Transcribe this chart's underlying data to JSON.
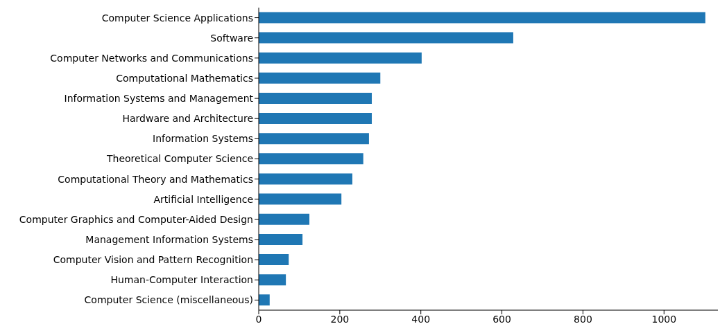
{
  "chart_data": {
    "type": "bar",
    "orientation": "horizontal",
    "categories": [
      "Computer Science Applications",
      "Software",
      "Computer Networks and Communications",
      "Computational Mathematics",
      "Information Systems and Management",
      "Hardware and Architecture",
      "Information Systems",
      "Theoretical Computer Science",
      "Computational Theory and Mathematics",
      "Artificial Intelligence",
      "Computer Graphics and Computer-Aided Design",
      "Management Information Systems",
      "Computer Vision and Pattern Recognition",
      "Human-Computer Interaction",
      "Computer Science (miscellaneous)"
    ],
    "values": [
      1102,
      628,
      402,
      300,
      279,
      279,
      272,
      258,
      231,
      204,
      125,
      108,
      74,
      67,
      27
    ],
    "color": "#1f77b4",
    "xlim": [
      0,
      1133
    ],
    "xticks": [
      0,
      200,
      400,
      600,
      800,
      1000
    ],
    "grid": false,
    "legend": false
  }
}
